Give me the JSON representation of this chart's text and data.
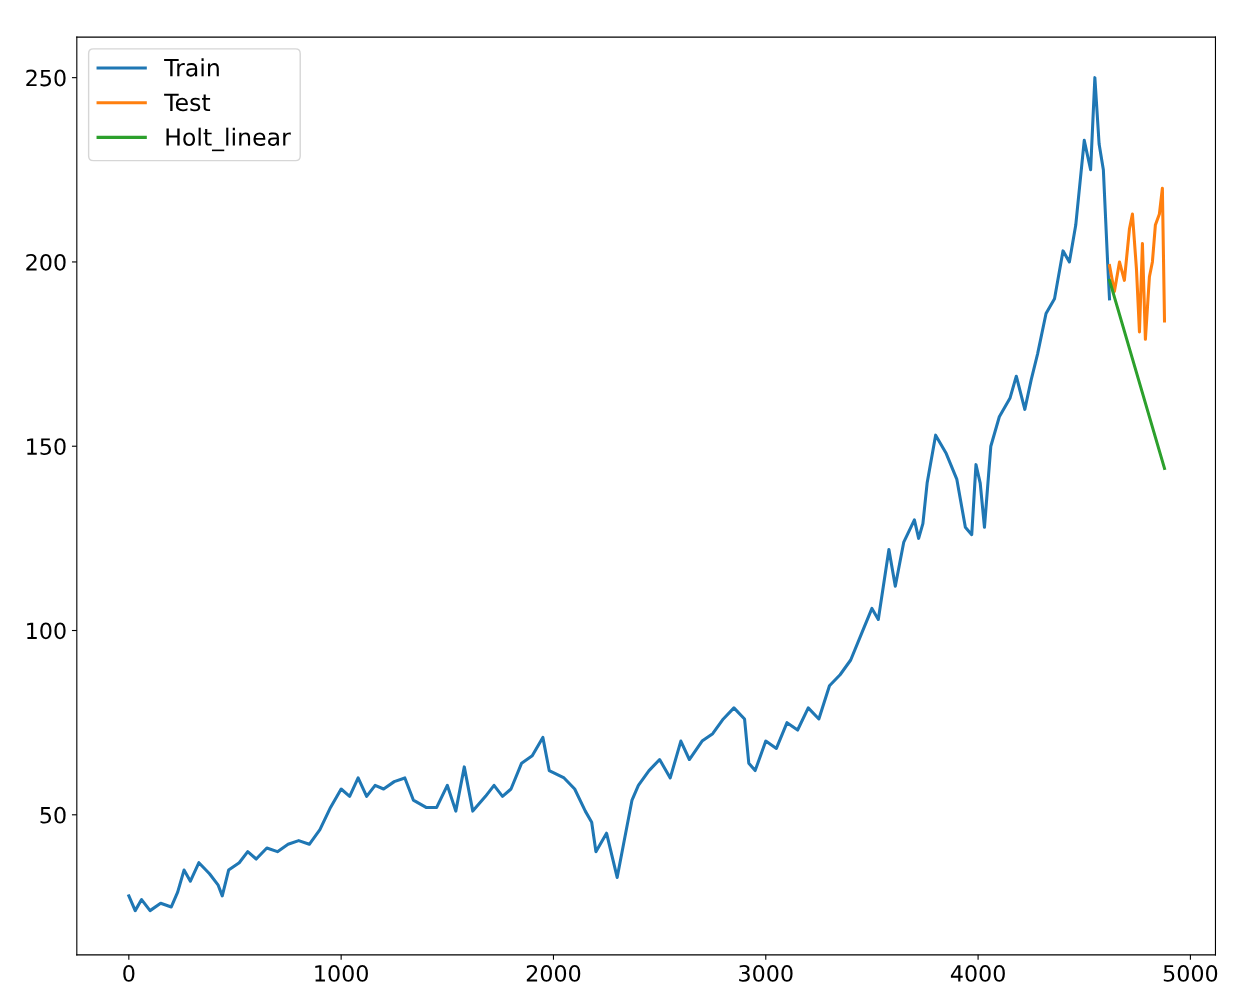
{
  "chart_data": {
    "type": "line",
    "xlim": [
      -245,
      5118
    ],
    "xticks": [
      0,
      1000,
      2000,
      3000,
      4000,
      5000
    ],
    "ylim": [
      12,
      261
    ],
    "yticks": [
      50,
      100,
      150,
      200,
      250
    ],
    "legend": "top left",
    "grid": false,
    "series": [
      {
        "name": "Train",
        "color": "#1f77b4",
        "x": [
          0,
          30,
          60,
          100,
          150,
          200,
          230,
          260,
          290,
          330,
          380,
          420,
          440,
          470,
          520,
          560,
          600,
          650,
          700,
          750,
          800,
          850,
          900,
          950,
          1000,
          1040,
          1080,
          1120,
          1160,
          1200,
          1250,
          1300,
          1340,
          1400,
          1450,
          1500,
          1540,
          1580,
          1620,
          1680,
          1720,
          1760,
          1800,
          1850,
          1900,
          1950,
          1980,
          2050,
          2100,
          2150,
          2180,
          2200,
          2250,
          2300,
          2330,
          2370,
          2400,
          2450,
          2500,
          2550,
          2600,
          2640,
          2700,
          2750,
          2800,
          2850,
          2900,
          2920,
          2950,
          3000,
          3050,
          3100,
          3150,
          3200,
          3250,
          3300,
          3350,
          3400,
          3450,
          3500,
          3530,
          3580,
          3610,
          3650,
          3700,
          3720,
          3740,
          3760,
          3800,
          3850,
          3900,
          3940,
          3970,
          3990,
          4010,
          4030,
          4060,
          4100,
          4150,
          4180,
          4220,
          4250,
          4280,
          4320,
          4360,
          4400,
          4430,
          4460,
          4500,
          4530,
          4550,
          4570,
          4590,
          4610,
          4619
        ],
        "values": [
          28,
          24,
          27,
          24,
          26,
          25,
          29,
          35,
          32,
          37,
          34,
          31,
          28,
          35,
          37,
          40,
          38,
          41,
          40,
          42,
          43,
          42,
          46,
          52,
          57,
          55,
          60,
          55,
          58,
          57,
          59,
          60,
          54,
          52,
          52,
          58,
          51,
          63,
          51,
          55,
          58,
          55,
          57,
          64,
          66,
          71,
          62,
          60,
          57,
          51,
          48,
          40,
          45,
          33,
          42,
          54,
          58,
          62,
          65,
          60,
          70,
          65,
          70,
          72,
          76,
          79,
          76,
          64,
          62,
          70,
          68,
          75,
          73,
          79,
          76,
          85,
          88,
          92,
          99,
          106,
          103,
          122,
          112,
          124,
          130,
          125,
          129,
          140,
          153,
          148,
          141,
          128,
          126,
          145,
          140,
          128,
          150,
          158,
          163,
          169,
          160,
          168,
          175,
          186,
          190,
          203,
          200,
          210,
          233,
          225,
          250,
          232,
          225,
          200,
          190
        ]
      },
      {
        "name": "Test",
        "color": "#ff7f0e",
        "x": [
          4619,
          4642,
          4666,
          4689,
          4713,
          4727,
          4746,
          4760,
          4774,
          4788,
          4807,
          4821,
          4835,
          4854,
          4868,
          4878
        ],
        "values": [
          199,
          192,
          200,
          195,
          209,
          213,
          198,
          181,
          205,
          179,
          196,
          200,
          210,
          213,
          220,
          184
        ]
      },
      {
        "name": "Holt_linear",
        "color": "#2ca02c",
        "x": [
          4619,
          4878
        ],
        "values": [
          195,
          144
        ]
      }
    ]
  }
}
